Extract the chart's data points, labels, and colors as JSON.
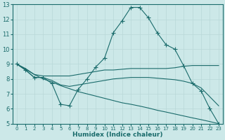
{
  "xlabel": "Humidex (Indice chaleur)",
  "ylabel": "",
  "xlim": [
    -0.5,
    23.5
  ],
  "ylim": [
    5,
    13
  ],
  "yticks": [
    5,
    6,
    7,
    8,
    9,
    10,
    11,
    12,
    13
  ],
  "xticks": [
    0,
    1,
    2,
    3,
    4,
    5,
    6,
    7,
    8,
    9,
    10,
    11,
    12,
    13,
    14,
    15,
    16,
    17,
    18,
    19,
    20,
    21,
    22,
    23
  ],
  "background_color": "#cce8e8",
  "line_color": "#1a6b6b",
  "grid_color": "#b8d8d8",
  "lines": [
    {
      "x": [
        0,
        1,
        2,
        3,
        4,
        5,
        6,
        7,
        8,
        9,
        10,
        11,
        12,
        13,
        14,
        15,
        16,
        17,
        18,
        19,
        20,
        21,
        22,
        23
      ],
      "y": [
        9.0,
        8.6,
        8.1,
        8.1,
        7.7,
        6.3,
        6.2,
        7.3,
        8.0,
        8.8,
        9.4,
        11.1,
        11.9,
        12.8,
        12.8,
        12.1,
        11.1,
        10.3,
        10.0,
        8.9,
        7.7,
        7.2,
        6.0,
        5.0
      ],
      "marker": true
    },
    {
      "x": [
        0,
        1,
        2,
        3,
        4,
        5,
        6,
        7,
        8,
        9,
        10,
        11,
        12,
        13,
        14,
        15,
        16,
        17,
        18,
        19,
        20,
        21,
        22,
        23
      ],
      "y": [
        9.0,
        8.7,
        8.3,
        8.2,
        8.2,
        8.2,
        8.2,
        8.3,
        8.4,
        8.5,
        8.6,
        8.6,
        8.65,
        8.7,
        8.7,
        8.7,
        8.7,
        8.7,
        8.75,
        8.85,
        8.9,
        8.9,
        8.9,
        8.9
      ],
      "marker": false
    },
    {
      "x": [
        0,
        1,
        2,
        3,
        4,
        5,
        6,
        7,
        8,
        9,
        10,
        11,
        12,
        13,
        14,
        15,
        16,
        17,
        18,
        19,
        20,
        21,
        22,
        23
      ],
      "y": [
        9.0,
        8.6,
        8.1,
        8.1,
        7.9,
        7.6,
        7.5,
        7.6,
        7.7,
        7.8,
        7.9,
        8.0,
        8.05,
        8.1,
        8.1,
        8.1,
        8.05,
        8.0,
        7.95,
        7.85,
        7.7,
        7.4,
        6.8,
        6.2
      ],
      "marker": false
    },
    {
      "x": [
        0,
        1,
        2,
        3,
        4,
        5,
        6,
        7,
        8,
        9,
        10,
        11,
        12,
        13,
        14,
        15,
        16,
        17,
        18,
        19,
        20,
        21,
        22,
        23
      ],
      "y": [
        9.0,
        8.65,
        8.3,
        8.0,
        7.8,
        7.55,
        7.35,
        7.15,
        7.0,
        6.85,
        6.7,
        6.55,
        6.4,
        6.3,
        6.18,
        6.05,
        5.9,
        5.78,
        5.65,
        5.52,
        5.39,
        5.27,
        5.14,
        5.0
      ],
      "marker": false
    }
  ]
}
